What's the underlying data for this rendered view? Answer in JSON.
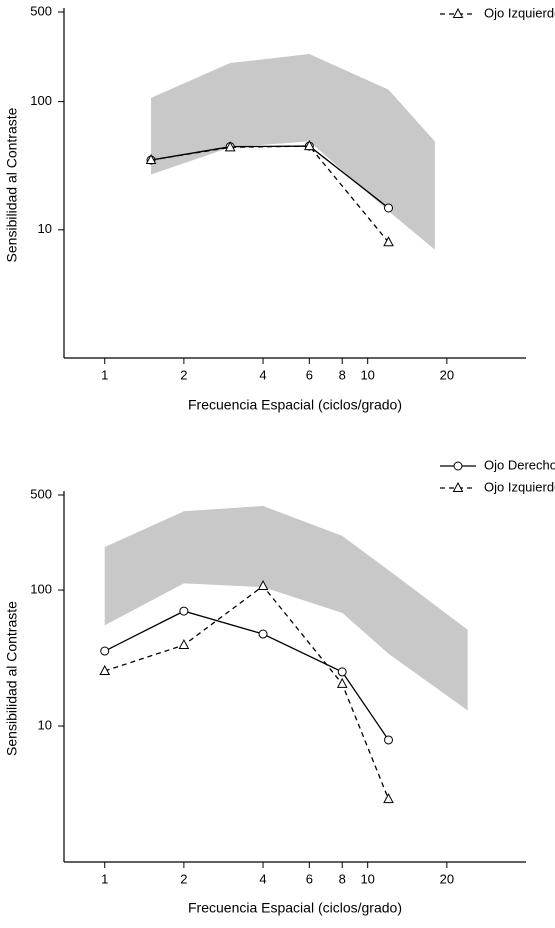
{
  "chart_data": [
    {
      "type": "line",
      "xlabel": "Frecuencia Espacial (ciclos/grado)",
      "ylabel": "Sensibilidad al Contraste",
      "xscale": "log",
      "yscale": "log",
      "xlim": [
        0.7,
        40
      ],
      "ylim": [
        1,
        500
      ],
      "xticks": [
        1,
        2,
        4,
        6,
        8,
        10,
        20
      ],
      "yticks": [
        10,
        100,
        500
      ],
      "legend": "upper right",
      "band": {
        "x": [
          1.5,
          3,
          6,
          12,
          18
        ],
        "upper": [
          107,
          200,
          235,
          124,
          49
        ],
        "lower": [
          27,
          44,
          49,
          14,
          7
        ],
        "color": "#c8c8c8"
      },
      "series": [
        {
          "name": "Ojo Derecho",
          "color": "#000000",
          "dash": false,
          "marker": "circle",
          "x": [
            1.5,
            3,
            6,
            12
          ],
          "values": [
            35,
            44.5,
            45,
            14.8
          ]
        },
        {
          "name": "Ojo Izquierdo",
          "color": "#000000",
          "dash": true,
          "marker": "triangle",
          "x": [
            1.5,
            3,
            6,
            12
          ],
          "values": [
            35,
            44,
            45,
            8
          ]
        }
      ]
    },
    {
      "type": "line",
      "xlabel": "Frecuencia Espacial (ciclos/grado)",
      "ylabel": "Sensibilidad al Contraste",
      "xscale": "log",
      "yscale": "log",
      "xlim": [
        0.7,
        40
      ],
      "ylim": [
        1,
        500
      ],
      "xticks": [
        1,
        2,
        4,
        6,
        8,
        10,
        20
      ],
      "yticks": [
        10,
        100,
        500
      ],
      "legend": "upper right",
      "band": {
        "x": [
          1,
          2,
          4,
          8,
          12,
          24
        ],
        "upper": [
          207,
          380,
          415,
          250,
          140,
          51
        ],
        "lower": [
          55,
          112,
          105,
          68,
          34,
          13
        ],
        "color": "#c8c8c8"
      },
      "series": [
        {
          "name": "Ojo Derecho",
          "color": "#000000",
          "dash": false,
          "marker": "circle",
          "x": [
            1,
            2,
            4,
            8,
            12
          ],
          "values": [
            35.6,
            70,
            47.5,
            25,
            7.9
          ]
        },
        {
          "name": "Ojo Izquierdo",
          "color": "#000000",
          "dash": true,
          "marker": "triangle",
          "x": [
            1,
            2,
            4,
            8,
            12
          ],
          "values": [
            25.4,
            39.4,
            107,
            20.4,
            2.9
          ]
        }
      ]
    }
  ]
}
